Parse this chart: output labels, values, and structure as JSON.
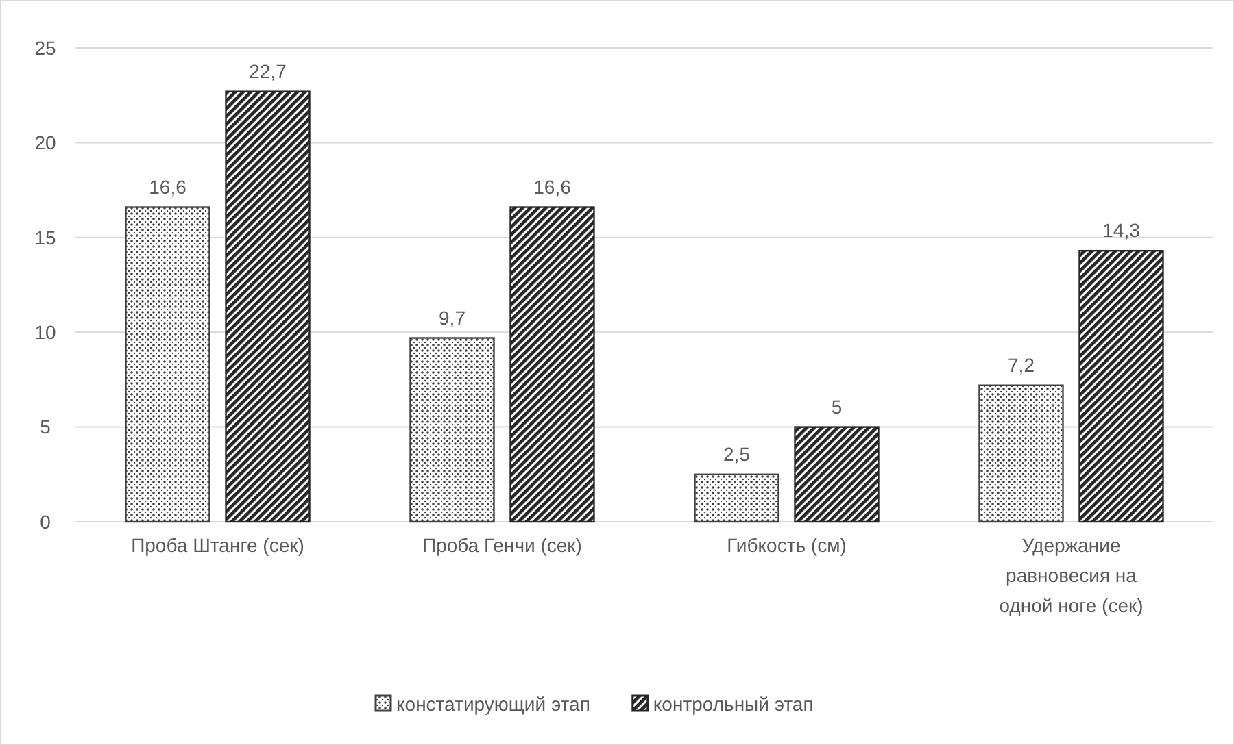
{
  "chart_data": {
    "type": "bar",
    "categories": [
      "Проба Штанге (сек)",
      "Проба Генчи (сек)",
      "Гибкость (см)",
      "Удержание равновесия на одной ноге (сек)"
    ],
    "series": [
      {
        "name": "констатирующий этап",
        "color": "#404040",
        "values": [
          16.6,
          9.7,
          2.5,
          7.2
        ],
        "value_labels": [
          "16,6",
          "9,7",
          "2,5",
          "7,2"
        ]
      },
      {
        "name": "контрольный этап",
        "color": "#262626",
        "values": [
          22.7,
          16.6,
          5,
          14.3
        ],
        "value_labels": [
          "22,7",
          "16,6",
          "5",
          "14,3"
        ]
      }
    ],
    "ylim": [
      0,
      25
    ],
    "yticks": [
      0,
      5,
      10,
      15,
      20,
      25
    ],
    "grid": "y",
    "legend": "bottom"
  }
}
